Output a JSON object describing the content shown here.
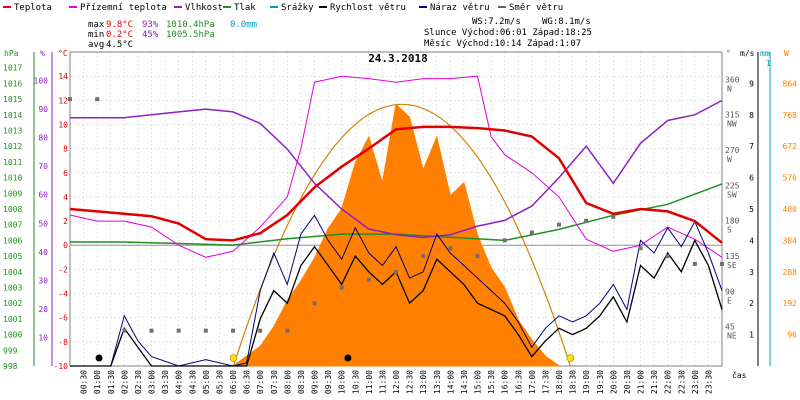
{
  "legend": [
    {
      "label": "Teplota",
      "color": "#e00000"
    },
    {
      "label": "Přízemní teplota",
      "color": "#e000e0"
    },
    {
      "label": "Vlhkost",
      "color": "#9020c0"
    },
    {
      "label": "Tlak",
      "color": "#209020"
    },
    {
      "label": "Srážky",
      "color": "#00a0c0"
    },
    {
      "label": "Rychlost větru",
      "color": "#000000"
    },
    {
      "label": "Náraz větru",
      "color": "#000080"
    },
    {
      "label": "Směr větru",
      "color": "#606060"
    }
  ],
  "stats": {
    "max_label": "max",
    "min_label": "min",
    "avg_label": "avg",
    "max_temp": "9.8°C",
    "max_hum": "93%",
    "max_press": "1010.4hPa",
    "max_rain": "0.0mm",
    "min_temp": "0.2°C",
    "min_hum": "45%",
    "min_press": "1005.5hPa",
    "avg_temp": "4.5°C"
  },
  "info": {
    "ws": "WS:7.2m/s",
    "wg": "WG:8.1m/s",
    "sun": "Slunce Východ:06:01 Západ:18:25",
    "moon": "Měsíc  Východ:10:14 Západ:1:07"
  },
  "colors": {
    "temp": "#e00000",
    "ground": "#e000e0",
    "hum": "#9020c0",
    "press": "#209020",
    "rain": "#00a0c0",
    "wind": "#000000",
    "gust": "#000080",
    "dir": "#707070",
    "solar": "#ff8000",
    "grid": "#c8c8c8"
  },
  "chart_data": {
    "type": "line",
    "title": "24.3.2018",
    "xlabel": "čas",
    "x_ticks": [
      "00:30",
      "01:00",
      "01:30",
      "02:00",
      "02:30",
      "03:00",
      "03:30",
      "04:00",
      "04:30",
      "05:00",
      "05:30",
      "06:00",
      "06:30",
      "07:00",
      "07:30",
      "08:00",
      "08:30",
      "09:00",
      "09:30",
      "10:00",
      "10:30",
      "11:00",
      "11:30",
      "12:00",
      "12:30",
      "13:00",
      "13:30",
      "14:00",
      "14:30",
      "15:00",
      "15:30",
      "16:00",
      "16:30",
      "17:00",
      "17:30",
      "18:00",
      "18:30",
      "19:00",
      "19:30",
      "20:00",
      "20:30",
      "21:00",
      "21:30",
      "22:00",
      "22:30",
      "23:00",
      "23:30"
    ],
    "axes": {
      "pressure": {
        "label": "hPa",
        "range": [
          998,
          1018
        ],
        "ticks": [
          "998",
          "999",
          "1000",
          "1001",
          "1002",
          "1003",
          "1004",
          "1005",
          "1006",
          "1007",
          "1008",
          "1009",
          "1010",
          "1011",
          "1012",
          "1013",
          "1014",
          "1015",
          "1016",
          "1017"
        ]
      },
      "humidity": {
        "label": "%",
        "range": [
          0,
          110
        ],
        "ticks": [
          "10",
          "20",
          "30",
          "40",
          "50",
          "60",
          "70",
          "80",
          "90",
          "100"
        ]
      },
      "temperature": {
        "label": "°C",
        "range": [
          -10,
          16
        ],
        "ticks": [
          "-10",
          "-8",
          "-6",
          "-4",
          "-2",
          "0",
          "2",
          "4",
          "6",
          "8",
          "10",
          "12",
          "14"
        ]
      },
      "direction": {
        "label": "°",
        "range": [
          0,
          400
        ],
        "ticks": [
          "45 NE",
          "90 E",
          "135 SE",
          "180 S",
          "225 SW",
          "270 W",
          "315 NW",
          "360 N"
        ]
      },
      "wind": {
        "label": "m/s",
        "range": [
          0,
          10
        ],
        "ticks": [
          "1",
          "2",
          "3",
          "4",
          "5",
          "6",
          "7",
          "8",
          "9"
        ]
      },
      "rain": {
        "label": "mm",
        "range": [
          0,
          1
        ],
        "ticks": [
          "1"
        ]
      },
      "solar": {
        "label": "W",
        "range": [
          0,
          960
        ],
        "ticks": [
          "96",
          "192",
          "288",
          "384",
          "480",
          "576",
          "672",
          "768",
          "864"
        ]
      }
    },
    "series": [
      {
        "name": "Teplota",
        "unit": "°C",
        "x": [
          0,
          1,
          2,
          3,
          4,
          5,
          6,
          7,
          8,
          9,
          10,
          11,
          12,
          13,
          14,
          15,
          16,
          17,
          18,
          19,
          20,
          21,
          22,
          23,
          24
        ],
        "values": [
          3.0,
          2.8,
          2.6,
          2.4,
          1.8,
          0.5,
          0.4,
          1.0,
          2.5,
          4.8,
          6.5,
          8.0,
          9.6,
          9.8,
          9.8,
          9.7,
          9.5,
          9.0,
          7.2,
          3.5,
          2.6,
          3.0,
          2.8,
          2.0,
          0.2
        ]
      },
      {
        "name": "Přízemní teplota",
        "unit": "°C",
        "x": [
          0,
          1,
          2,
          3,
          4,
          5,
          6,
          7,
          8,
          8.5,
          9,
          10,
          11,
          12,
          13,
          14,
          15,
          15.5,
          16,
          17,
          18,
          19,
          20,
          21,
          22,
          23,
          24
        ],
        "values": [
          2.5,
          2.0,
          2.0,
          1.5,
          0.0,
          -1.0,
          -0.5,
          1.5,
          4.0,
          8.0,
          13.5,
          14.0,
          13.8,
          13.5,
          13.8,
          13.8,
          14.0,
          9.0,
          7.5,
          6.0,
          4.0,
          0.5,
          -0.5,
          0.0,
          1.5,
          0.5,
          -1.0
        ]
      },
      {
        "name": "Vlhkost",
        "unit": "%",
        "x": [
          0,
          1,
          2,
          3,
          4,
          5,
          6,
          7,
          8,
          9,
          10,
          11,
          12,
          13,
          14,
          15,
          16,
          17,
          18,
          19,
          20,
          21,
          22,
          23,
          24
        ],
        "values": [
          87,
          87,
          87,
          88,
          89,
          90,
          89,
          85,
          76,
          64,
          55,
          48,
          46,
          45,
          46,
          49,
          51,
          56,
          66,
          77,
          64,
          78,
          86,
          88,
          93
        ]
      },
      {
        "name": "Tlak",
        "unit": "hPa",
        "x": [
          0,
          2,
          4,
          6,
          8,
          10,
          12,
          14,
          16,
          18,
          20,
          22,
          24
        ],
        "values": [
          1005.9,
          1005.9,
          1005.8,
          1005.7,
          1006.1,
          1006.4,
          1006.4,
          1006.2,
          1006.0,
          1006.7,
          1007.6,
          1008.3,
          1009.6
        ]
      },
      {
        "name": "Rychlost větru",
        "unit": "m/s",
        "x": [
          0,
          1,
          1.5,
          2,
          2.5,
          3,
          4,
          5,
          6,
          6.5,
          7,
          7.5,
          8,
          8.5,
          9,
          9.5,
          10,
          10.5,
          11,
          11.5,
          12,
          12.5,
          13,
          13.5,
          14,
          14.5,
          15,
          15.5,
          16,
          16.5,
          17,
          17.5,
          18,
          18.5,
          19,
          19.5,
          20,
          20.5,
          21,
          21.5,
          22,
          22.5,
          23,
          23.5,
          24
        ],
        "values": [
          0,
          0,
          0,
          1.2,
          0.6,
          0,
          0,
          0,
          0,
          0,
          1.5,
          2.4,
          2.0,
          3.2,
          3.8,
          3.2,
          2.6,
          3.5,
          3.0,
          2.6,
          3.0,
          2.0,
          2.4,
          3.4,
          3.0,
          2.6,
          2.0,
          1.8,
          1.6,
          1.0,
          0.3,
          0.8,
          1.2,
          1.0,
          1.2,
          1.6,
          2.2,
          1.4,
          3.2,
          2.8,
          3.6,
          3.0,
          4.0,
          3.2,
          1.8
        ]
      },
      {
        "name": "Náraz větru",
        "unit": "m/s",
        "x": [
          0,
          1,
          1.5,
          2,
          2.5,
          3,
          4,
          5,
          6,
          6.5,
          7,
          7.5,
          8,
          8.5,
          9,
          9.5,
          10,
          10.5,
          11,
          11.5,
          12,
          12.5,
          13,
          13.5,
          14,
          14.5,
          15,
          15.5,
          16,
          16.5,
          17,
          17.5,
          18,
          18.5,
          19,
          19.5,
          20,
          20.5,
          21,
          21.5,
          22,
          22.5,
          23,
          23.5,
          24
        ],
        "values": [
          0,
          0,
          0,
          1.6,
          0.8,
          0.3,
          0,
          0.2,
          0,
          0.1,
          2.4,
          3.6,
          2.6,
          4.2,
          4.8,
          4.0,
          3.4,
          4.4,
          3.6,
          3.2,
          3.8,
          2.8,
          3.0,
          4.2,
          3.6,
          3.2,
          2.8,
          2.4,
          2.0,
          1.4,
          0.6,
          1.2,
          1.6,
          1.4,
          1.6,
          2.0,
          2.6,
          1.8,
          4.0,
          3.6,
          4.4,
          3.8,
          4.6,
          3.6,
          2.4
        ]
      },
      {
        "name": "Směr větru",
        "unit": "°",
        "x": [
          0,
          1,
          2,
          3,
          4,
          5,
          6,
          7,
          8,
          9,
          10,
          11,
          12,
          13,
          14,
          15,
          16,
          17,
          18,
          19,
          20,
          21,
          22,
          23,
          24
        ],
        "values": [
          340,
          340,
          45,
          45,
          45,
          45,
          45,
          45,
          45,
          80,
          100,
          110,
          120,
          140,
          150,
          140,
          160,
          170,
          180,
          185,
          190,
          150,
          140,
          130,
          130
        ]
      },
      {
        "name": "Solar",
        "unit": "W",
        "x": [
          6,
          7,
          7.5,
          8,
          8.5,
          9,
          9.5,
          10,
          10.5,
          11,
          11.5,
          12,
          12.5,
          13,
          13.5,
          14,
          14.5,
          15,
          15.5,
          16,
          16.5,
          17,
          17.5,
          18
        ],
        "values": [
          0,
          60,
          120,
          200,
          260,
          330,
          420,
          480,
          620,
          700,
          560,
          800,
          760,
          600,
          700,
          520,
          560,
          400,
          300,
          240,
          140,
          80,
          30,
          0
        ]
      }
    ]
  }
}
